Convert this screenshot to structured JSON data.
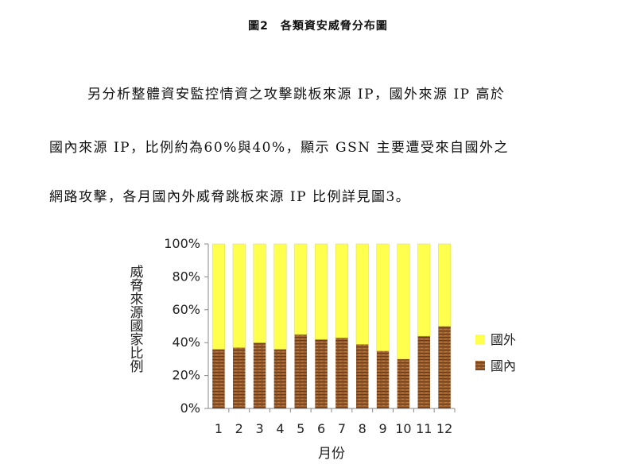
{
  "figure_caption": "圖2　各類資安威脅分布圖",
  "paragraph": [
    "另分析整體資安監控情資之攻擊跳板來源 IP，國外來源 IP 高於",
    "國內來源 IP，比例約為60%與40%，顯示 GSN 主要遭受來自國外之",
    "網路攻擊，各月國內外威脅跳板來源 IP 比例詳見圖3。"
  ],
  "chart_data": {
    "type": "bar",
    "stacked": true,
    "xlabel": "月份",
    "ylabel": "威脅來源國家比例",
    "categories": [
      "1",
      "2",
      "3",
      "4",
      "5",
      "6",
      "7",
      "8",
      "9",
      "10",
      "11",
      "12"
    ],
    "yticks": [
      "0%",
      "20%",
      "40%",
      "60%",
      "80%",
      "100%"
    ],
    "ylim": [
      0,
      100
    ],
    "series": [
      {
        "name": "國內",
        "color": "#9c5d2a",
        "values": [
          36,
          37,
          40,
          36,
          45,
          42,
          43,
          39,
          35,
          30,
          44,
          50
        ]
      },
      {
        "name": "國外",
        "color": "#ffff4d",
        "values": [
          64,
          63,
          60,
          64,
          55,
          58,
          57,
          61,
          65,
          70,
          56,
          50
        ]
      }
    ],
    "legend": [
      "國外",
      "國內"
    ],
    "legend_position": "right",
    "grid": false
  }
}
